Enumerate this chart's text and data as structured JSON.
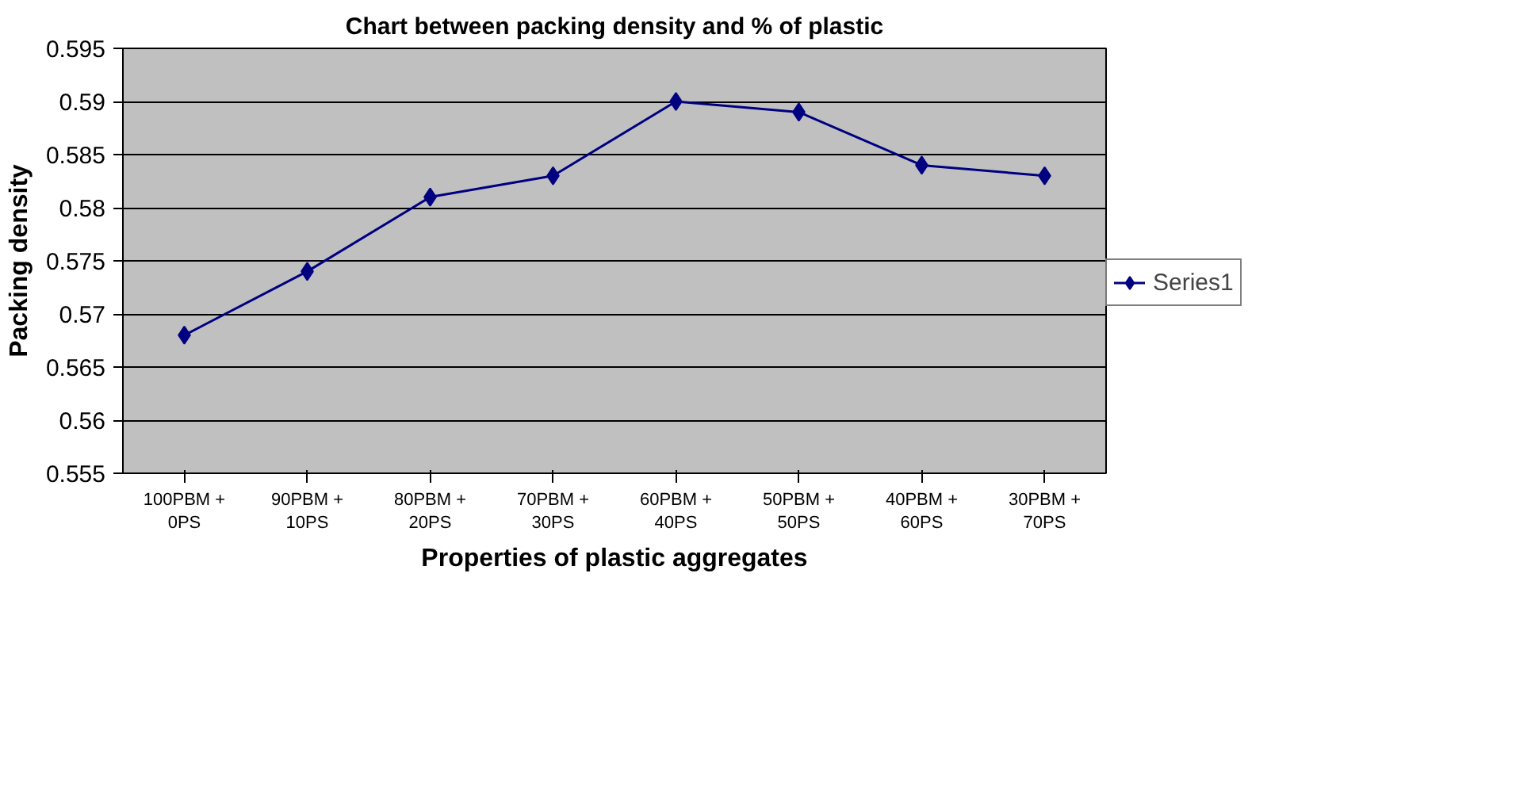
{
  "chart_data": {
    "type": "line",
    "title": "Chart between packing density and % of plastic",
    "xlabel": "Properties of plastic aggregates",
    "ylabel": "Packing density",
    "categories": [
      "100PBM +\n0PS",
      "90PBM +\n10PS",
      "80PBM +\n20PS",
      "70PBM +\n30PS",
      "60PBM +\n40PS",
      "50PBM +\n50PS",
      "40PBM +\n60PS",
      "30PBM +\n70PS"
    ],
    "series": [
      {
        "name": "Series1",
        "color": "#000080",
        "values": [
          0.568,
          0.574,
          0.581,
          0.583,
          0.59,
          0.589,
          0.584,
          0.583
        ]
      }
    ],
    "ylim": [
      0.555,
      0.595
    ],
    "yticks": [
      0.555,
      0.56,
      0.565,
      0.57,
      0.575,
      0.58,
      0.585,
      0.59,
      0.595
    ],
    "grid": "y",
    "legend": "right",
    "marker": "diamond",
    "line_style": "solid"
  }
}
